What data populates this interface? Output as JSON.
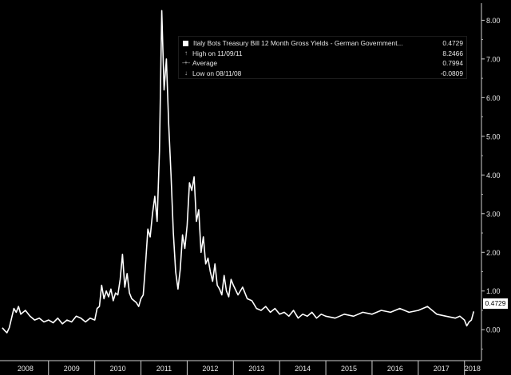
{
  "chart_data": {
    "type": "line",
    "title": "",
    "xlabel": "",
    "ylabel": "",
    "ylim": [
      -0.8,
      8.4
    ],
    "yticks": [
      "8.00",
      "7.00",
      "6.00",
      "5.00",
      "4.00",
      "3.00",
      "2.00",
      "1.00",
      "0.00"
    ],
    "ytick_values": [
      8,
      7,
      6,
      5,
      4,
      3,
      2,
      1,
      0
    ],
    "xticks": [
      "2008",
      "2009",
      "2010",
      "2011",
      "2012",
      "2013",
      "2014",
      "2015",
      "2016",
      "2017",
      "2018"
    ],
    "xlim": [
      2007.95,
      2018.35
    ],
    "grid": false,
    "legend_position": "top-right",
    "series": [
      {
        "name": "Italy Bots Treasury Bill 12 Month Gross Yields - German Government...",
        "color": "#ffffff",
        "last_value": "0.4729",
        "x": [
          2008.0,
          2008.05,
          2008.1,
          2008.15,
          2008.2,
          2008.25,
          2008.3,
          2008.35,
          2008.4,
          2008.5,
          2008.6,
          2008.7,
          2008.8,
          2008.9,
          2009.0,
          2009.1,
          2009.2,
          2009.3,
          2009.4,
          2009.5,
          2009.6,
          2009.7,
          2009.8,
          2009.9,
          2010.0,
          2010.05,
          2010.1,
          2010.15,
          2010.2,
          2010.25,
          2010.3,
          2010.35,
          2010.4,
          2010.45,
          2010.5,
          2010.55,
          2010.6,
          2010.65,
          2010.7,
          2010.75,
          2010.8,
          2010.85,
          2010.9,
          2010.95,
          2011.0,
          2011.05,
          2011.1,
          2011.15,
          2011.2,
          2011.25,
          2011.3,
          2011.35,
          2011.4,
          2011.45,
          2011.5,
          2011.55,
          2011.6,
          2011.65,
          2011.7,
          2011.75,
          2011.8,
          2011.85,
          2011.9,
          2011.95,
          2012.0,
          2012.05,
          2012.1,
          2012.15,
          2012.2,
          2012.25,
          2012.3,
          2012.35,
          2012.4,
          2012.45,
          2012.5,
          2012.55,
          2012.6,
          2012.65,
          2012.7,
          2012.75,
          2012.8,
          2012.85,
          2012.9,
          2012.95,
          2013.0,
          2013.1,
          2013.2,
          2013.3,
          2013.4,
          2013.5,
          2013.6,
          2013.7,
          2013.8,
          2013.9,
          2014.0,
          2014.1,
          2014.2,
          2014.3,
          2014.4,
          2014.5,
          2014.6,
          2014.7,
          2014.8,
          2014.9,
          2015.0,
          2015.2,
          2015.4,
          2015.6,
          2015.8,
          2016.0,
          2016.2,
          2016.4,
          2016.6,
          2016.8,
          2017.0,
          2017.2,
          2017.4,
          2017.6,
          2017.8,
          2017.9,
          2018.0,
          2018.05,
          2018.1,
          2018.15,
          2018.2
        ],
        "y": [
          0.05,
          -0.02,
          -0.08,
          0.05,
          0.3,
          0.55,
          0.45,
          0.6,
          0.4,
          0.5,
          0.35,
          0.25,
          0.3,
          0.2,
          0.25,
          0.18,
          0.3,
          0.15,
          0.25,
          0.2,
          0.35,
          0.3,
          0.2,
          0.3,
          0.25,
          0.55,
          0.6,
          1.15,
          0.8,
          1.0,
          0.85,
          1.05,
          0.75,
          0.95,
          0.9,
          1.3,
          1.95,
          1.1,
          1.45,
          0.95,
          0.8,
          0.75,
          0.7,
          0.6,
          0.8,
          0.9,
          1.7,
          2.6,
          2.4,
          3.0,
          3.45,
          2.8,
          4.6,
          8.25,
          6.2,
          7.0,
          5.3,
          4.0,
          2.5,
          1.5,
          1.05,
          1.55,
          2.45,
          2.1,
          2.7,
          3.8,
          3.6,
          3.95,
          2.8,
          3.1,
          2.0,
          2.4,
          1.7,
          1.85,
          1.5,
          1.25,
          1.7,
          1.15,
          1.05,
          0.9,
          1.4,
          1.0,
          0.85,
          1.3,
          1.15,
          0.9,
          1.1,
          0.8,
          0.75,
          0.55,
          0.5,
          0.6,
          0.45,
          0.55,
          0.4,
          0.45,
          0.35,
          0.5,
          0.3,
          0.4,
          0.35,
          0.45,
          0.3,
          0.4,
          0.35,
          0.3,
          0.4,
          0.35,
          0.45,
          0.4,
          0.5,
          0.45,
          0.55,
          0.45,
          0.5,
          0.6,
          0.4,
          0.35,
          0.3,
          0.35,
          0.25,
          0.1,
          0.2,
          0.25,
          0.4729
        ]
      }
    ]
  },
  "legend": {
    "series_label": "Italy Bots Treasury Bill 12 Month Gross Yields - German Government...",
    "series_value": "0.4729",
    "high_label": "High on 11/09/11",
    "high_value": "8.2466",
    "average_label": "Average",
    "average_value": "0.7994",
    "low_label": "Low on 08/11/08",
    "low_value": "-0.0809",
    "high_icon": "high-marker-icon",
    "average_icon": "average-marker-icon",
    "low_icon": "low-marker-icon"
  },
  "last_value_flag": "0.4729",
  "colors": {
    "background": "#000000",
    "line": "#ffffff",
    "axis": "#cfcfcf",
    "text": "#e6e6e6"
  }
}
